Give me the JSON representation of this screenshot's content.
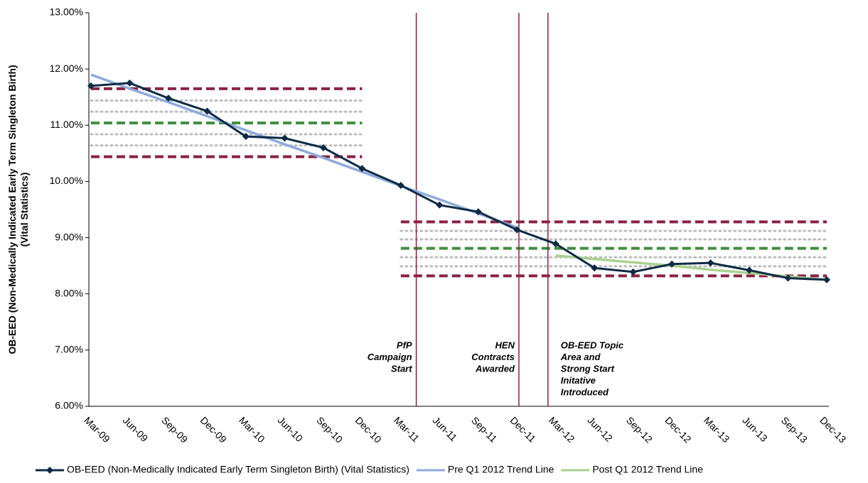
{
  "chart_data": {
    "type": "line",
    "ylabel": [
      "OB-EED (Non-Medically Indicated Early Term Singleton Birth)",
      "(Vital Statistics)"
    ],
    "categories": [
      "Mar-09",
      "Jun-09",
      "Sep-09",
      "Dec-09",
      "Mar-10",
      "Jun-10",
      "Sep-10",
      "Dec-10",
      "Mar-11",
      "Jun-11",
      "Sep-11",
      "Dec-11",
      "Mar-12",
      "Jun-12",
      "Sep-12",
      "Dec-12",
      "Mar-13",
      "Jun-13",
      "Sep-13",
      "Dec-13"
    ],
    "series": [
      {
        "name": "OB-EED (Non-Medically Indicated Early Term Singleton Birth) (Vital Statistics)",
        "color": "#0d2b45",
        "marker": "diamond",
        "values": [
          11.7,
          11.75,
          11.48,
          11.25,
          10.8,
          10.77,
          10.6,
          10.23,
          9.93,
          9.58,
          9.46,
          9.14,
          8.89,
          8.46,
          8.39,
          8.53,
          8.55,
          8.42,
          8.28,
          8.25
        ]
      },
      {
        "name": "Pre Q1 2012 Trend Line",
        "color": "#8eaadb",
        "values": [
          11.9,
          11.65,
          11.41,
          11.16,
          10.91,
          10.66,
          10.42,
          10.17,
          9.92,
          9.68,
          9.43,
          9.18,
          null,
          null,
          null,
          null,
          null,
          null,
          null,
          null
        ]
      },
      {
        "name": "Post Q1 2012 Trend Line",
        "color": "#a9d18e",
        "values": [
          null,
          null,
          null,
          null,
          null,
          null,
          null,
          null,
          null,
          null,
          null,
          null,
          8.68,
          8.62,
          8.56,
          8.5,
          8.43,
          8.37,
          8.31,
          8.25
        ]
      }
    ],
    "control_limits": [
      {
        "from": "Mar-09",
        "to": "Dec-10",
        "ucl": 11.65,
        "center": 11.04,
        "lcl": 10.44,
        "inner": [
          11.44,
          11.24,
          10.84,
          10.64
        ]
      },
      {
        "from": "Mar-11",
        "to": "Dec-13",
        "ucl": 9.28,
        "center": 8.81,
        "lcl": 8.32,
        "inner": [
          9.12,
          8.97,
          8.65,
          8.49
        ]
      }
    ],
    "limit_color": "#8b2242",
    "center_color": "#3e8e3e",
    "inner_color": "#bdbdbd",
    "events": [
      {
        "at": 8.4,
        "lines": [
          "PfP",
          "Campaign",
          "Start"
        ],
        "label_side": "left"
      },
      {
        "at": 11.05,
        "lines": [
          "HEN",
          "Contracts",
          "Awarded"
        ],
        "label_side": "left"
      },
      {
        "at": 11.8,
        "lines": [
          "OB-EED Topic",
          "Area and",
          "Strong Start",
          "Initative",
          "Introduced"
        ],
        "label_side": "right"
      }
    ],
    "event_color": "#8b2242",
    "ylim": [
      6,
      13
    ],
    "yticks": [
      {
        "value": 6,
        "label": "6.00%"
      },
      {
        "value": 7,
        "label": "7.00%"
      },
      {
        "value": 8,
        "label": "8.00%"
      },
      {
        "value": 9,
        "label": "9.00%"
      },
      {
        "value": 10,
        "label": "10.00%"
      },
      {
        "value": 11,
        "label": "11.00%"
      },
      {
        "value": 12,
        "label": "12.00%"
      },
      {
        "value": 13,
        "label": "13.00%"
      }
    ],
    "grid": false,
    "legend": "bottom"
  }
}
